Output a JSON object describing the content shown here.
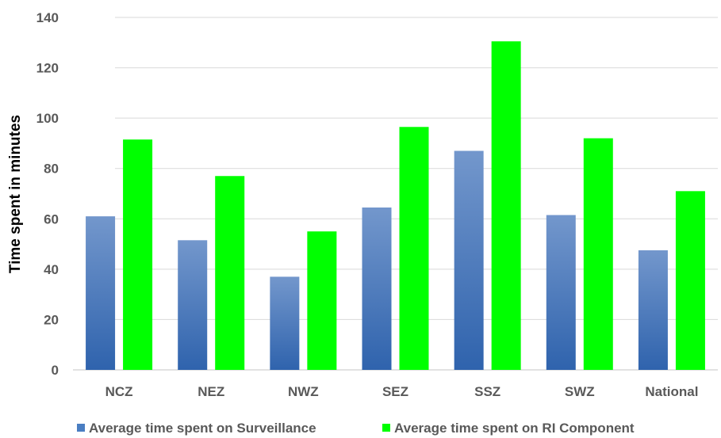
{
  "chart_data": {
    "type": "bar",
    "title": "",
    "xlabel": "",
    "ylabel": "Time spent in minutes",
    "ylim": [
      0,
      140
    ],
    "yticks": [
      0,
      20,
      40,
      60,
      80,
      100,
      120,
      140
    ],
    "grid": true,
    "legend_position": "bottom",
    "categories": [
      "NCZ",
      "NEZ",
      "NWZ",
      "SEZ",
      "SSZ",
      "SWZ",
      "National"
    ],
    "series": [
      {
        "name": "Average time spent on Surveillance",
        "color": "#4A7EC2",
        "values": [
          61,
          51.5,
          37,
          64.5,
          87,
          61.5,
          47.5
        ]
      },
      {
        "name": "Average time spent on RI Component",
        "color": "#00FF00",
        "values": [
          91.5,
          77,
          55,
          96.5,
          130.5,
          92,
          71
        ]
      }
    ]
  }
}
